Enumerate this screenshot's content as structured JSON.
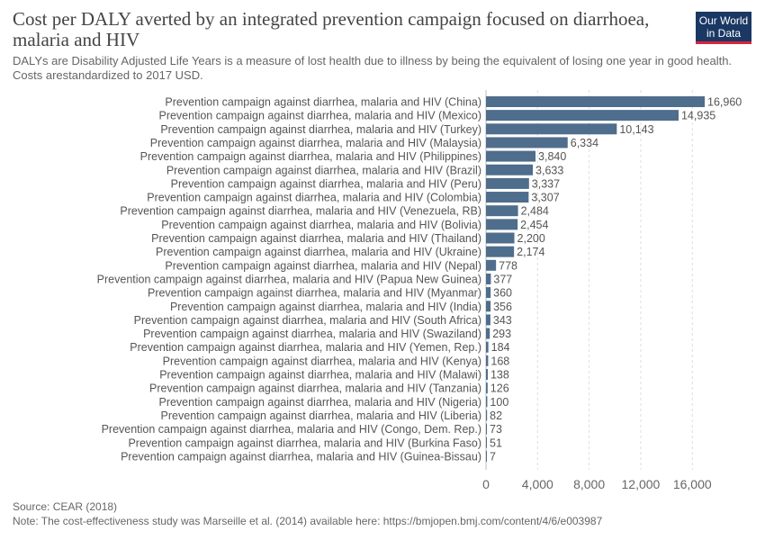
{
  "header": {
    "title": "Cost per DALY averted by an integrated prevention campaign focused on diarrhoea, malaria and HIV",
    "subtitle": "DALYs are Disability Adjusted Life Years is a measure of lost health due to illness by being the equivalent of losing one year in good health. Costs arestandardized to 2017 USD.",
    "logo_line1": "Our World",
    "logo_line2": "in Data"
  },
  "footer": {
    "source": "Source: CEAR (2018)",
    "note": "Note: The cost-effectiveness study was Marseille et al. (2014) available here: https://bmjopen.bmj.com/content/4/6/e003987"
  },
  "colors": {
    "bar": "#4f6d8c",
    "grid": "#dddddd",
    "text": "#555555",
    "logo_bg": "#1a3863",
    "logo_accent": "#d7263d"
  },
  "chart_data": {
    "type": "bar",
    "orientation": "horizontal",
    "title": "Cost per DALY averted by an integrated prevention campaign focused on diarrhoea, malaria and HIV",
    "categories": [
      "Prevention campaign against diarrhea, malaria and HIV (China)",
      "Prevention campaign against diarrhea, malaria and HIV (Mexico)",
      "Prevention campaign against diarrhea, malaria and HIV (Turkey)",
      "Prevention campaign against diarrhea, malaria and HIV (Malaysia)",
      "Prevention campaign against diarrhea, malaria and HIV (Philippines)",
      "Prevention campaign against diarrhea, malaria and HIV (Brazil)",
      "Prevention campaign against diarrhea, malaria and HIV (Peru)",
      "Prevention campaign against diarrhea, malaria and HIV (Colombia)",
      "Prevention campaign against diarrhea, malaria and HIV (Venezuela, RB)",
      "Prevention campaign against diarrhea, malaria and HIV (Bolivia)",
      "Prevention campaign against diarrhea, malaria and HIV (Thailand)",
      "Prevention campaign against diarrhea, malaria and HIV (Ukraine)",
      "Prevention campaign against diarrhea, malaria and HIV (Nepal)",
      "Prevention campaign against diarrhea, malaria and HIV (Papua New Guinea)",
      "Prevention campaign against diarrhea, malaria and HIV (Myanmar)",
      "Prevention campaign against diarrhea, malaria and HIV (India)",
      "Prevention campaign against diarrhea, malaria and HIV (South Africa)",
      "Prevention campaign against diarrhea, malaria and HIV (Swaziland)",
      "Prevention campaign against diarrhea, malaria and HIV (Yemen, Rep.)",
      "Prevention campaign against diarrhea, malaria and HIV (Kenya)",
      "Prevention campaign against diarrhea, malaria and HIV (Malawi)",
      "Prevention campaign against diarrhea, malaria and HIV (Tanzania)",
      "Prevention campaign against diarrhea, malaria and HIV (Nigeria)",
      "Prevention campaign against diarrhea, malaria and HIV (Liberia)",
      "Prevention campaign against diarrhea, malaria and HIV (Congo, Dem. Rep.)",
      "Prevention campaign against diarrhea, malaria and HIV (Burkina Faso)",
      "Prevention campaign against diarrhea, malaria and HIV (Guinea-Bissau)"
    ],
    "values": [
      16960,
      14935,
      10143,
      6334,
      3840,
      3633,
      3337,
      3307,
      2484,
      2454,
      2200,
      2174,
      778,
      377,
      360,
      356,
      343,
      293,
      184,
      168,
      138,
      126,
      100,
      82,
      73,
      51,
      7
    ],
    "value_labels": [
      "16,960",
      "14,935",
      "10,143",
      "6,334",
      "3,840",
      "3,633",
      "3,337",
      "3,307",
      "2,484",
      "2,454",
      "2,200",
      "2,174",
      "778",
      "377",
      "360",
      "356",
      "343",
      "293",
      "184",
      "168",
      "138",
      "126",
      "100",
      "82",
      "73",
      "51",
      "7"
    ],
    "x_ticks": [
      0,
      4000,
      8000,
      12000,
      16000
    ],
    "x_tick_labels": [
      "0",
      "4,000",
      "8,000",
      "12,000",
      "16,000"
    ],
    "xlim": [
      0,
      17500
    ],
    "grid": true,
    "legend": "none"
  }
}
